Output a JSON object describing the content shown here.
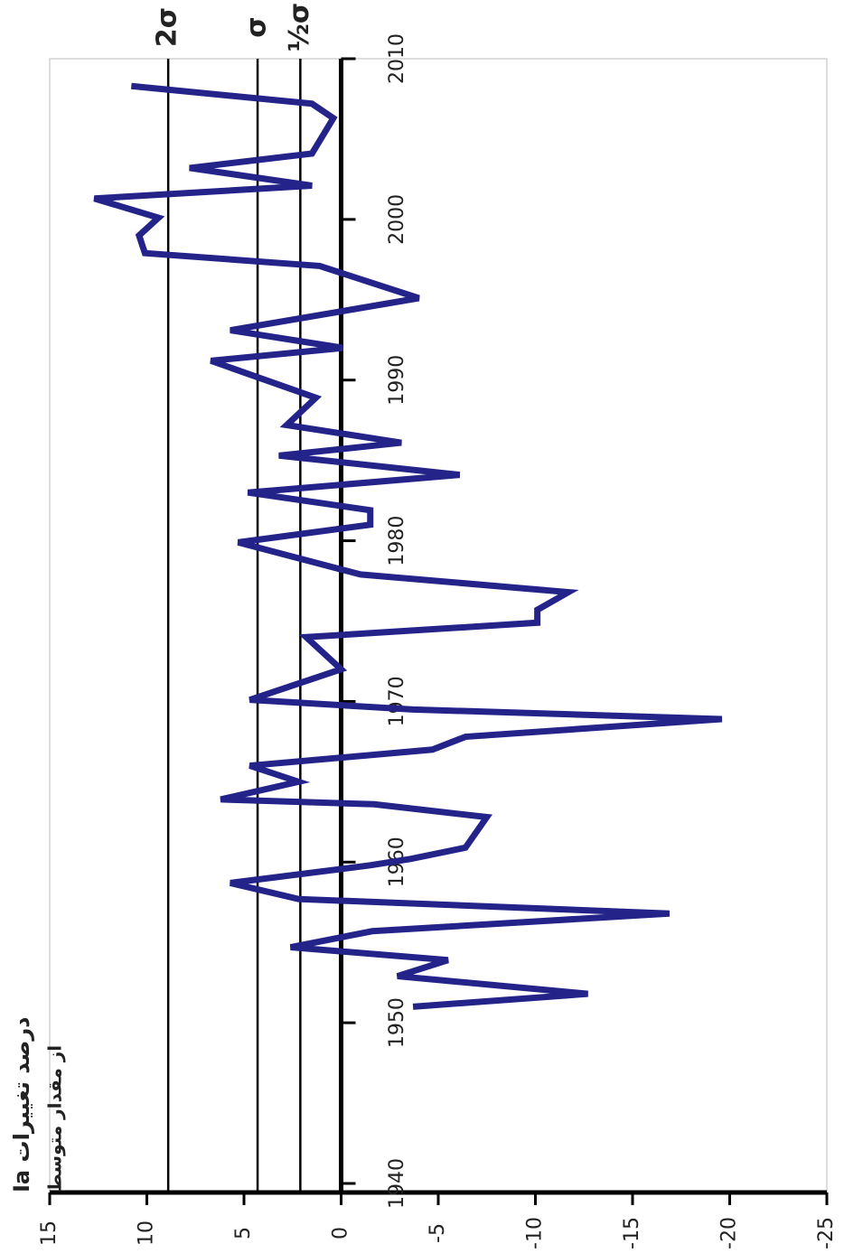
{
  "chart_data": {
    "type": "line",
    "title": "Ia درصد تغییرات",
    "subtitle": "از مقدار متوسط",
    "x": [
      1951.0,
      1951.8,
      1952.9,
      1953.9,
      1954.7,
      1955.7,
      1956.8,
      1957.7,
      1958.7,
      1959.8,
      1960.2,
      1960.9,
      1962.8,
      1963.6,
      1963.9,
      1965.0,
      1966.0,
      1967.0,
      1967.8,
      1968.9,
      1969.5,
      1970.1,
      1972.0,
      1974.0,
      1974.9,
      1975.7,
      1976.8,
      1977.9,
      1979.9,
      1981.0,
      1981.9,
      1983.0,
      1984.1,
      1985.3,
      1986.1,
      1987.2,
      1988.9,
      1991.2,
      1992.0,
      1993.1,
      1995.1,
      1997.1,
      1997.9,
      1999.0,
      2000.1,
      2001.3,
      2002.1,
      2003.2,
      2004.1,
      2006.3,
      2007.2,
      2008.3
    ],
    "series": [
      {
        "color": "#23238a",
        "values": [
          -3.7,
          -12.7,
          -2.9,
          -5.5,
          2.6,
          -1.6,
          -16.9,
          2.2,
          5.7,
          -1.5,
          -3.6,
          -6.4,
          -7.5,
          -1.7,
          6.2,
          2.2,
          4.7,
          -4.7,
          -6.4,
          -19.6,
          -3.7,
          4.7,
          0,
          1.8,
          -10.1,
          -10.1,
          -11.7,
          -1.0,
          5.3,
          -1.5,
          -1.5,
          4.8,
          -6.1,
          3.2,
          -3.1,
          2.8,
          1.3,
          6.7,
          -0.1,
          5.7,
          -4.0,
          1.1,
          10.1,
          10.4,
          9.4,
          12.7,
          1.5,
          7.8,
          1.5,
          0.4,
          1.5,
          10.8
        ]
      }
    ],
    "xlim": [
      1940,
      2010
    ],
    "xticks": [
      1940,
      1950,
      1960,
      1970,
      1980,
      1990,
      2000,
      2010
    ],
    "ylim": [
      -25,
      15
    ],
    "yticks": [
      -25,
      -20,
      -15,
      -10,
      -5,
      0,
      5,
      10,
      15
    ],
    "reference_lines": [
      {
        "value": 8.9,
        "label": "2σ"
      },
      {
        "value": 4.3,
        "label": "σ"
      },
      {
        "value": 2.1,
        "label": "½σ"
      }
    ]
  }
}
